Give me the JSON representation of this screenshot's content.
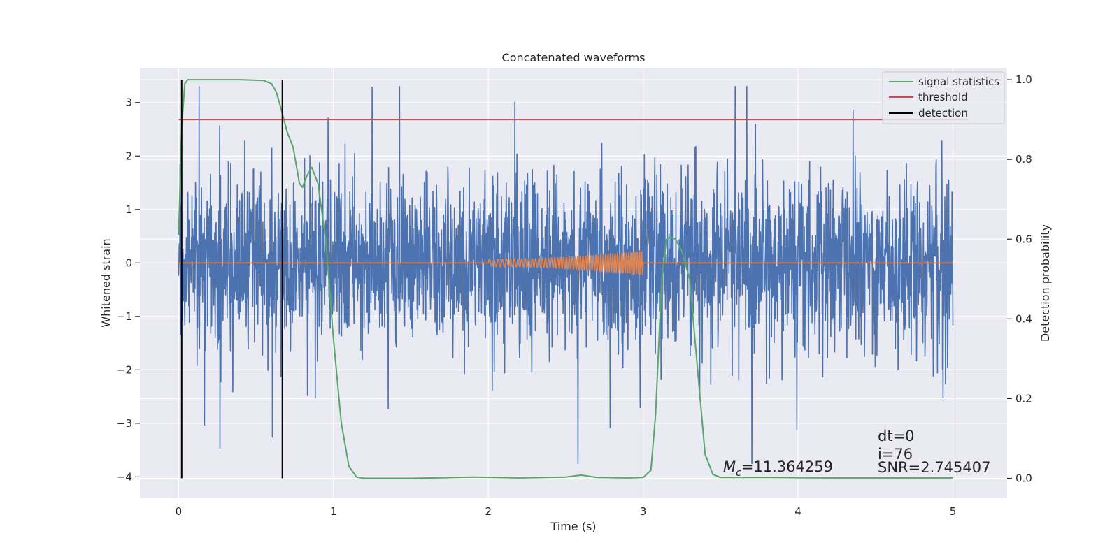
{
  "chart_data": {
    "type": "line",
    "title": "Concatenated waveforms",
    "xlabel": "Time (s)",
    "ylabel": "Whitened strain",
    "ylabel_right": "Detection probability",
    "xlim": [
      -0.25,
      5.35
    ],
    "ylim": [
      -4.4,
      3.65
    ],
    "ylim_right": [
      -0.05,
      1.03
    ],
    "xticks": [
      0,
      1,
      2,
      3,
      4,
      5
    ],
    "yticks": [
      -4,
      -3,
      -2,
      -1,
      0,
      1,
      2,
      3
    ],
    "yticks_right": [
      0.0,
      0.2,
      0.4,
      0.6,
      0.8,
      1.0
    ],
    "xtick_labels": [
      "0",
      "1",
      "2",
      "3",
      "4",
      "5"
    ],
    "ytick_labels": [
      "−4",
      "−3",
      "−2",
      "−1",
      "0",
      "1",
      "2",
      "3"
    ],
    "ytick_labels_right": [
      "0.0",
      "0.2",
      "0.4",
      "0.6",
      "0.8",
      "1.0"
    ],
    "grid": true,
    "legend_position": "top-right",
    "legend": [
      "signal statistics",
      "threshold",
      "detection"
    ],
    "colors": {
      "noise": "#4c72b0",
      "template": "#dd8452",
      "signal_statistics": "#55a868",
      "threshold": "#c44e52",
      "detection": "#000000",
      "background": "#eaeaf2",
      "grid": "#ffffff"
    },
    "series": [
      {
        "name": "signal statistics",
        "axis": "right",
        "x": [
          0.0,
          0.02,
          0.04,
          0.06,
          0.1,
          0.2,
          0.4,
          0.55,
          0.6,
          0.63,
          0.66,
          0.7,
          0.74,
          0.78,
          0.8,
          0.83,
          0.86,
          0.9,
          0.95,
          1.0,
          1.05,
          1.1,
          1.15,
          1.2,
          1.5,
          1.9,
          2.2,
          2.5,
          2.6,
          2.7,
          2.9,
          3.0,
          3.05,
          3.08,
          3.12,
          3.15,
          3.18,
          3.21,
          3.25,
          3.3,
          3.35,
          3.4,
          3.45,
          3.5,
          3.8,
          4.2,
          4.6,
          5.0
        ],
        "y": [
          0.61,
          0.88,
          0.99,
          1.0,
          1.0,
          1.0,
          1.0,
          0.998,
          0.99,
          0.97,
          0.93,
          0.87,
          0.83,
          0.74,
          0.73,
          0.76,
          0.78,
          0.74,
          0.6,
          0.35,
          0.14,
          0.03,
          0.003,
          0.0,
          0.0,
          0.003,
          0.001,
          0.003,
          0.008,
          0.002,
          0.001,
          0.002,
          0.02,
          0.16,
          0.5,
          0.6,
          0.605,
          0.6,
          0.57,
          0.5,
          0.28,
          0.06,
          0.01,
          0.002,
          0.002,
          0.001,
          0.001,
          0.001
        ]
      },
      {
        "name": "threshold",
        "axis": "right",
        "x": [
          0.0,
          5.1
        ],
        "y": [
          0.9,
          0.9
        ]
      },
      {
        "name": "detection",
        "axis": "right",
        "x": [
          0.02,
          0.67
        ],
        "y": [
          1.0,
          1.0
        ]
      },
      {
        "name": "",
        "axis": "left",
        "kind": "noise",
        "x_range": [
          0,
          5
        ],
        "amplitude_envelope": 3.3
      },
      {
        "name": "",
        "axis": "left",
        "kind": "chirp",
        "x_range": [
          2.0,
          3.0
        ],
        "amplitude_start": 0.07,
        "amplitude_end": 0.22
      }
    ],
    "annotations": {
      "mc_symbol": "M",
      "mc_subscript": "c",
      "mc_value": "=11.364259",
      "dt": "dt=0",
      "i": "i=76",
      "snr": "SNR=2.745407"
    }
  }
}
